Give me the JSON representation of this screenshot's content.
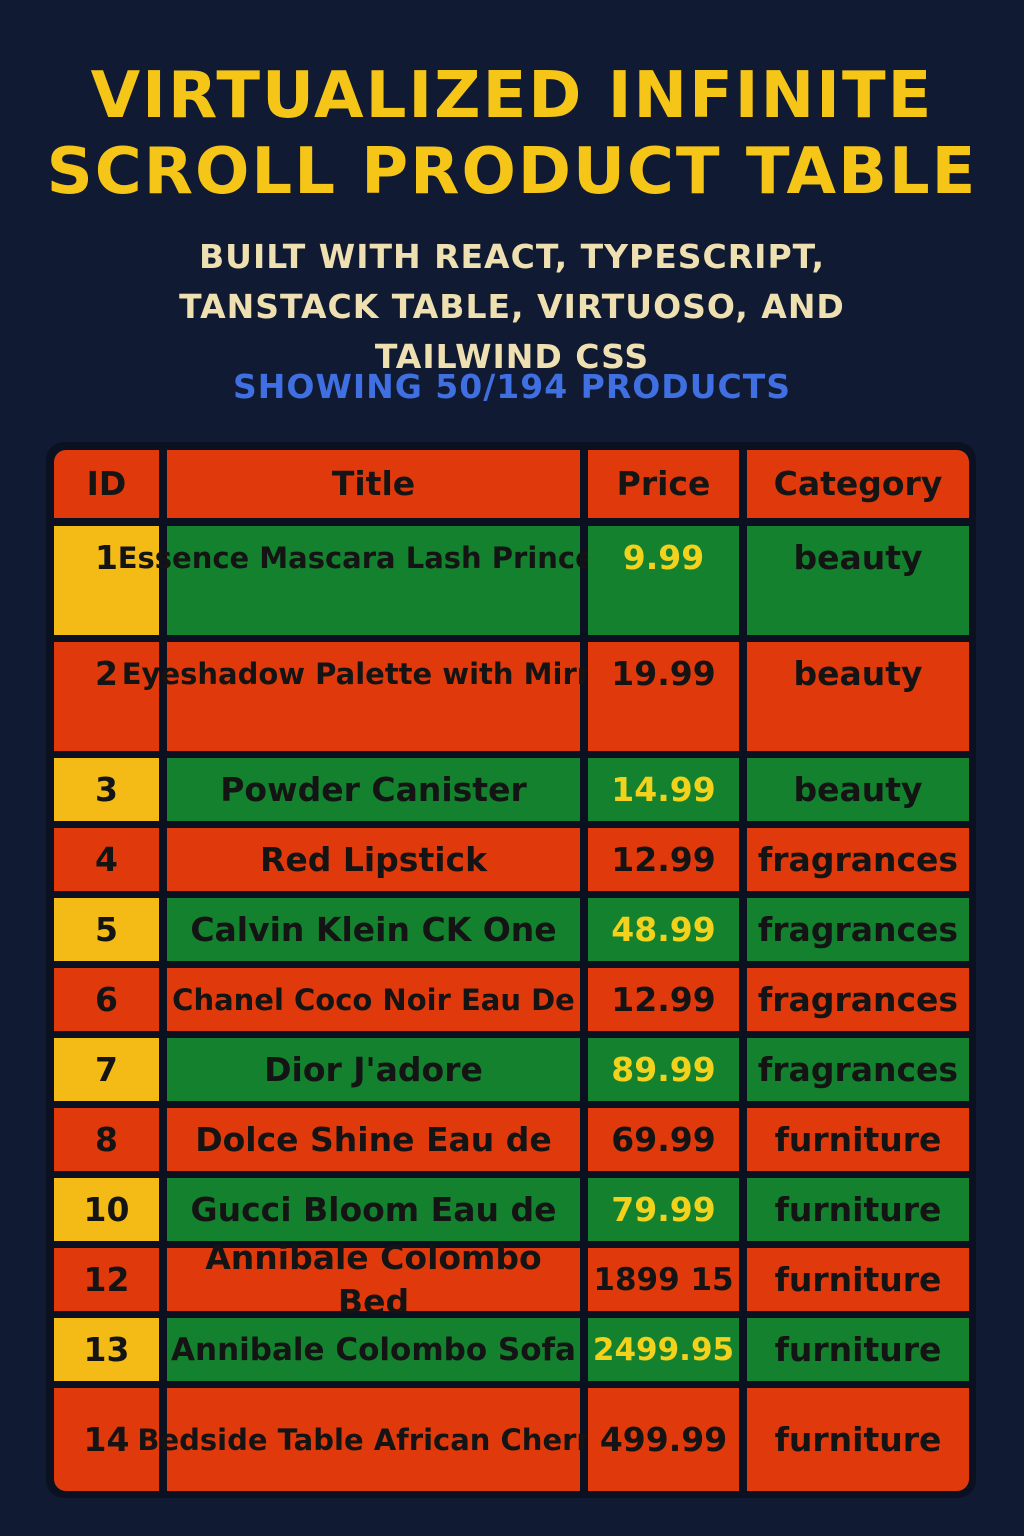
{
  "header": {
    "title": "Virtualized Infinite Scroll Product Table",
    "subtitle": "Built with React, TypeScript, TanStack Table, Virtuoso, and Tailwind CSS",
    "showing": "Showing 50/194 Products"
  },
  "table": {
    "columns": [
      "ID",
      "Title",
      "Price",
      "Category"
    ],
    "rows": [
      {
        "id": "1",
        "title": "Essence Mascara\nLash Princess",
        "price": "9.99",
        "category": "beauty"
      },
      {
        "id": "2",
        "title": "Eyeshadow Palette\nwith Mirror",
        "price": "19.99",
        "category": "beauty"
      },
      {
        "id": "3",
        "title": "Powder Canister",
        "price": "14.99",
        "category": "beauty"
      },
      {
        "id": "4",
        "title": "Red Lipstick",
        "price": "12.99",
        "category": "fragrances"
      },
      {
        "id": "5",
        "title": "Calvin Klein CK One",
        "price": "48.99",
        "category": "fragrances"
      },
      {
        "id": "6",
        "title": "Chanel Coco Noir Eau De",
        "price": "12.99",
        "category": "fragrances"
      },
      {
        "id": "7",
        "title": "Dior J'adore",
        "price": "89.99",
        "category": "fragrances"
      },
      {
        "id": "8",
        "title": "Dolce Shine Eau de",
        "price": "69.99",
        "category": "furniture"
      },
      {
        "id": "10",
        "title": "Gucci Bloom Eau de",
        "price": "79.99",
        "category": "furniture"
      },
      {
        "id": "12",
        "title": "Annibale Colombo Bed",
        "price": "1899 15",
        "category": "furniture"
      },
      {
        "id": "13",
        "title": "Annibale Colombo Sofa",
        "price": "2499.95",
        "category": "furniture"
      },
      {
        "id": "14",
        "title": "Bedside Table\nAfrican Cherry",
        "price": "499.99",
        "category": "furniture"
      }
    ]
  },
  "colors": {
    "background": "#101a33",
    "title": "#f5c518",
    "subtitle": "#eee0b0",
    "showing": "#3f6fe0",
    "red": "#e03a0c",
    "green": "#13812e",
    "yellow": "#f4bb16",
    "price_on_green": "#f2d21c",
    "text_dark": "#141414"
  }
}
